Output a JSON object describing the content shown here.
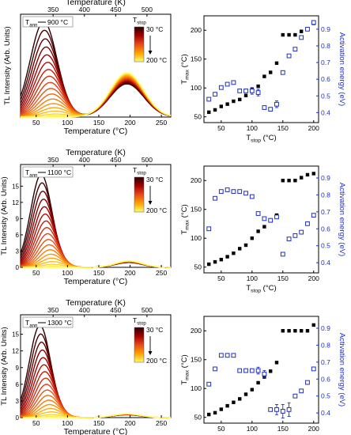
{
  "figure": {
    "rows": [
      {
        "tl": {
          "type": "line",
          "xlabel": "Temperature (°C)",
          "toplabel": "Temperature (K)",
          "ylabel": "TL Intensity (Arb. Units)",
          "xlim": [
            25,
            265
          ],
          "xticks": [
            "50",
            "100",
            "150",
            "200",
            "250"
          ],
          "topticks": [
            "350",
            "400",
            "450",
            "500"
          ],
          "yticks": [],
          "tann_prefix": "T",
          "tann_sub": "ann",
          "tann_value": "900 °C",
          "tstop_prefix": "T",
          "tstop_sub": "stop",
          "cb_top": "30 °C",
          "cb_bottom": "200 °C",
          "peak1": {
            "center": 62,
            "width": 30,
            "max_height": 0.93
          },
          "peak2": {
            "center": 195,
            "width": 38,
            "max_height": 0.43
          },
          "ylim": [
            0,
            1
          ]
        },
        "act": {
          "type": "scatter",
          "xlabel_prefix": "T",
          "xlabel_sub": "stop",
          "xlabel_suffix": " (°C)",
          "ylabel_left_prefix": "T",
          "ylabel_left_sub": "max",
          "ylabel_left_suffix": " (°C)",
          "ylabel_right": "Activation energy (eV)",
          "xlim": [
            22,
            208
          ],
          "xticks": [
            "50",
            "100",
            "150",
            "200"
          ],
          "ylim_left": [
            40,
            225
          ],
          "yticks_left": [
            "50",
            "100",
            "150",
            "200"
          ],
          "ylim_right": [
            0.34,
            0.98
          ],
          "yticks_right": [
            "0.4",
            "0.5",
            "0.6",
            "0.7",
            "0.8",
            "0.9"
          ],
          "tstop": [
            30,
            40,
            50,
            60,
            70,
            80,
            90,
            100,
            110,
            120,
            130,
            140,
            150,
            160,
            170,
            180,
            190,
            200
          ],
          "tmax": [
            58,
            62,
            68,
            72,
            77,
            80,
            87,
            97,
            103,
            120,
            127,
            143,
            192,
            192,
            192,
            198,
            202,
            212
          ],
          "ea": [
            0.48,
            0.51,
            0.55,
            0.57,
            0.58,
            0.53,
            0.53,
            0.53,
            0.52,
            0.43,
            0.42,
            0.45,
            0.64,
            0.74,
            0.78,
            0.85,
            0.9,
            0.94
          ],
          "ea_err": [
            0,
            0,
            0,
            0,
            0,
            0,
            0,
            0.02,
            0.02,
            0,
            0,
            0.02,
            0,
            0,
            0,
            0,
            0,
            0
          ]
        }
      },
      {
        "tl": {
          "type": "line",
          "xlabel": "Temperature (°C)",
          "toplabel": "Temperature (K)",
          "ylabel": "TL Intensity (Arb. Units)",
          "xlim": [
            25,
            265
          ],
          "xticks": [
            "50",
            "100",
            "150",
            "200",
            "250"
          ],
          "topticks": [
            "350",
            "400",
            "450",
            "500"
          ],
          "ylim": [
            0,
            19
          ],
          "yticks": [
            "0",
            "3",
            "6",
            "9",
            "12",
            "15"
          ],
          "tann_prefix": "T",
          "tann_sub": "ann",
          "tann_value": "1100 °C",
          "tstop_prefix": "T",
          "tstop_sub": "stop",
          "cb_top": "30 °C",
          "cb_bottom": "200 °C",
          "peak1": {
            "center": 58,
            "width": 24,
            "max_height": 17.2
          },
          "peak2": {
            "center": 198,
            "width": 30,
            "max_height": 1.2
          }
        },
        "act": {
          "type": "scatter",
          "xlabel_prefix": "T",
          "xlabel_sub": "stop",
          "xlabel_suffix": " (°C)",
          "ylabel_left_prefix": "T",
          "ylabel_left_sub": "max",
          "ylabel_left_suffix": " (°C)",
          "ylabel_right": "Activation energy (eV)",
          "xlim": [
            22,
            208
          ],
          "xticks": [
            "50",
            "100",
            "150",
            "200"
          ],
          "ylim_left": [
            40,
            225
          ],
          "yticks_left": [
            "50",
            "100",
            "150",
            "200"
          ],
          "ylim_right": [
            0.34,
            0.97
          ],
          "yticks_right": [
            "0.4",
            "0.5",
            "0.6",
            "0.7",
            "0.8",
            "0.9"
          ],
          "tstop": [
            30,
            40,
            50,
            60,
            70,
            80,
            90,
            100,
            110,
            120,
            130,
            140,
            150,
            160,
            170,
            180,
            190,
            200
          ],
          "tmax": [
            55,
            59,
            63,
            68,
            74,
            82,
            88,
            100,
            112,
            120,
            130,
            140,
            200,
            200,
            200,
            205,
            210,
            212
          ],
          "ea": [
            0.6,
            0.78,
            0.82,
            0.83,
            0.82,
            0.82,
            0.81,
            0.79,
            0.69,
            0.66,
            0.65,
            0.67,
            0.45,
            0.54,
            0.56,
            0.58,
            0.63,
            0.68
          ],
          "ea_err": [
            0,
            0,
            0,
            0,
            0,
            0,
            0,
            0,
            0,
            0,
            0,
            0,
            0.01,
            0,
            0,
            0,
            0,
            0
          ]
        }
      },
      {
        "tl": {
          "type": "line",
          "xlabel": "Temperature (°C)",
          "toplabel": "Temperature (K)",
          "ylabel": "TL Intensity (Arb. Units)",
          "xlim": [
            25,
            265
          ],
          "xticks": [
            "50",
            "100",
            "150",
            "200",
            "250"
          ],
          "topticks": [
            "350",
            "400",
            "450",
            "500"
          ],
          "ylim": [
            0,
            18.5
          ],
          "yticks": [
            "0",
            "3",
            "6",
            "9",
            "12",
            "15"
          ],
          "tann_prefix": "T",
          "tann_sub": "ann",
          "tann_value": "1300 °C",
          "tstop_prefix": "T",
          "tstop_sub": "stop",
          "cb_top": "30 °C",
          "cb_bottom": "200 °C",
          "peak1": {
            "center": 56,
            "width": 24,
            "max_height": 16.6
          },
          "peak2": {
            "center": 195,
            "width": 30,
            "max_height": 0.7
          }
        },
        "act": {
          "type": "scatter",
          "xlabel_prefix": "T",
          "xlabel_sub": "stop",
          "xlabel_suffix": " (°C)",
          "ylabel_left_prefix": "T",
          "ylabel_left_sub": "max",
          "ylabel_left_suffix": " (°C)",
          "ylabel_right": "Activation energy (eV)",
          "xlim": [
            22,
            208
          ],
          "xticks": [
            "50",
            "100",
            "150",
            "200"
          ],
          "ylim_left": [
            40,
            225
          ],
          "yticks_left": [
            "50",
            "100",
            "150",
            "200"
          ],
          "ylim_right": [
            0.34,
            0.97
          ],
          "yticks_right": [
            "0.4",
            "0.5",
            "0.6",
            "0.7",
            "0.8",
            "0.9"
          ],
          "tstop": [
            30,
            40,
            50,
            60,
            70,
            80,
            90,
            100,
            110,
            120,
            130,
            140,
            150,
            160,
            170,
            180,
            190,
            200
          ],
          "tmax": [
            55,
            58,
            64,
            70,
            76,
            82,
            90,
            98,
            110,
            120,
            130,
            145,
            200,
            200,
            200,
            200,
            200,
            210
          ],
          "ea": [
            0.57,
            0.66,
            0.74,
            0.74,
            0.74,
            0.65,
            0.65,
            0.65,
            0.65,
            0.63,
            0.42,
            0.42,
            0.41,
            0.42,
            0.5,
            0.53,
            0.58,
            0.66
          ],
          "ea_err": [
            0,
            0,
            0,
            0,
            0,
            0,
            0,
            0,
            0.02,
            0.02,
            0,
            0.03,
            0.04,
            0.04,
            0,
            0,
            0,
            0
          ]
        }
      }
    ]
  }
}
